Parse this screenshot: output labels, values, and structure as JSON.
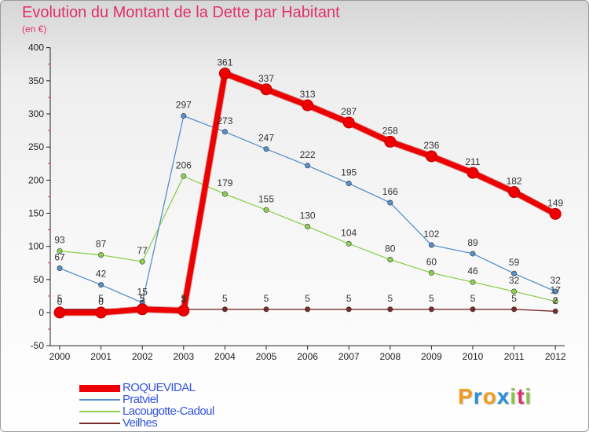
{
  "title": "Evolution du Montant de la Dette par Habitant",
  "subtitle": "(en €)",
  "brand": {
    "letters": [
      "P",
      "r",
      "o",
      "x",
      "i",
      "t",
      "i"
    ],
    "colors": [
      "#f39c1e",
      "#2b8fd8",
      "#f39c1e",
      "#2b8fd8",
      "#8bc34a",
      "#e0306a",
      "#8bc34a"
    ]
  },
  "chart_data": {
    "type": "line",
    "title": "Evolution du Montant de la Dette par Habitant",
    "ylabel": "(en €)",
    "xlabel": "",
    "categories": [
      "2000",
      "2001",
      "2002",
      "2003",
      "2004",
      "2005",
      "2006",
      "2007",
      "2008",
      "2009",
      "2010",
      "2011",
      "2012"
    ],
    "yticks": [
      "-50",
      "0",
      "50",
      "100",
      "150",
      "200",
      "250",
      "300",
      "350",
      "400"
    ],
    "ylim": [
      -50,
      400
    ],
    "grid": false,
    "legend_position": "bottom-left",
    "series": [
      {
        "name": "ROQUEVIDAL",
        "color": "#ee0000",
        "width": 7,
        "marker": 7,
        "values": [
          0,
          0,
          5,
          3,
          361,
          337,
          313,
          287,
          258,
          236,
          211,
          182,
          149
        ],
        "labels": [
          "0",
          "0",
          "5",
          "3",
          "361",
          "337",
          "313",
          "287",
          "258",
          "236",
          "211",
          "182",
          "149"
        ]
      },
      {
        "name": "Pratviel",
        "color": "#5590cc",
        "width": 1.3,
        "marker": 3.2,
        "values": [
          67,
          42,
          15,
          297,
          273,
          247,
          222,
          195,
          166,
          102,
          89,
          59,
          32
        ],
        "labels": [
          "67",
          "42",
          "15",
          "297",
          "273",
          "247",
          "222",
          "195",
          "166",
          "102",
          "89",
          "59",
          "32"
        ]
      },
      {
        "name": "Lacougotte-Cadoul",
        "color": "#8ed050",
        "width": 1.3,
        "marker": 3.2,
        "values": [
          93,
          87,
          77,
          206,
          179,
          155,
          130,
          104,
          80,
          60,
          46,
          32,
          17
        ],
        "labels": [
          "93",
          "87",
          "77",
          "206",
          "179",
          "155",
          "130",
          "104",
          "80",
          "60",
          "46",
          "32",
          "17"
        ]
      },
      {
        "name": "Veilhes",
        "color": "#7a2a2a",
        "width": 1.3,
        "marker": 3.2,
        "values": [
          5,
          5,
          5,
          5,
          5,
          5,
          5,
          5,
          5,
          5,
          5,
          5,
          2
        ],
        "labels": [
          "5",
          "5",
          "5",
          "5",
          "5",
          "5",
          "5",
          "5",
          "5",
          "5",
          "5",
          "5",
          "2"
        ]
      }
    ]
  }
}
